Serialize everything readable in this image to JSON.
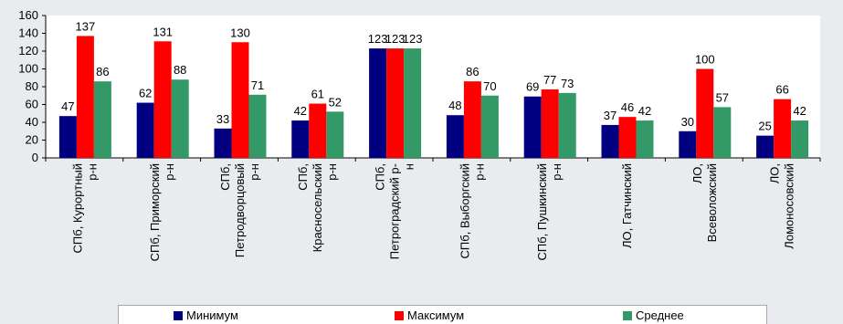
{
  "chart_data": {
    "type": "bar",
    "categories": [
      [
        "СПб, Курортный",
        "р-н"
      ],
      [
        "СПб, Приморский",
        "р-н"
      ],
      [
        "СПб,",
        "Петродворцовый",
        "р-н"
      ],
      [
        "СПб,",
        "Красносельский",
        "р-н"
      ],
      [
        "СПб,",
        "Петроградский р-",
        "н"
      ],
      [
        "СПб, Выборгский",
        "р-н"
      ],
      [
        "СПб, Пушкинский",
        "р-н"
      ],
      [
        "ЛО, Гатчинский"
      ],
      [
        "ЛО,",
        "Всеволожский"
      ],
      [
        "ЛО,",
        "Ломоносовский"
      ]
    ],
    "series": [
      {
        "name": "Минимум",
        "color": "#000080",
        "values": [
          47,
          62,
          33,
          42,
          123,
          48,
          69,
          37,
          30,
          25
        ]
      },
      {
        "name": "Максимум",
        "color": "#ff0000",
        "values": [
          137,
          131,
          130,
          61,
          123,
          86,
          77,
          46,
          100,
          66
        ]
      },
      {
        "name": "Среднее",
        "color": "#339966",
        "values": [
          86,
          88,
          71,
          52,
          123,
          70,
          73,
          42,
          57,
          42
        ]
      }
    ],
    "y_ticks": [
      "0",
      "20",
      "40",
      "60",
      "80",
      "100",
      "120",
      "140",
      "160"
    ],
    "ylim": [
      0,
      160
    ],
    "legend_position": "bottom",
    "title": "",
    "xlabel": "",
    "ylabel": ""
  }
}
